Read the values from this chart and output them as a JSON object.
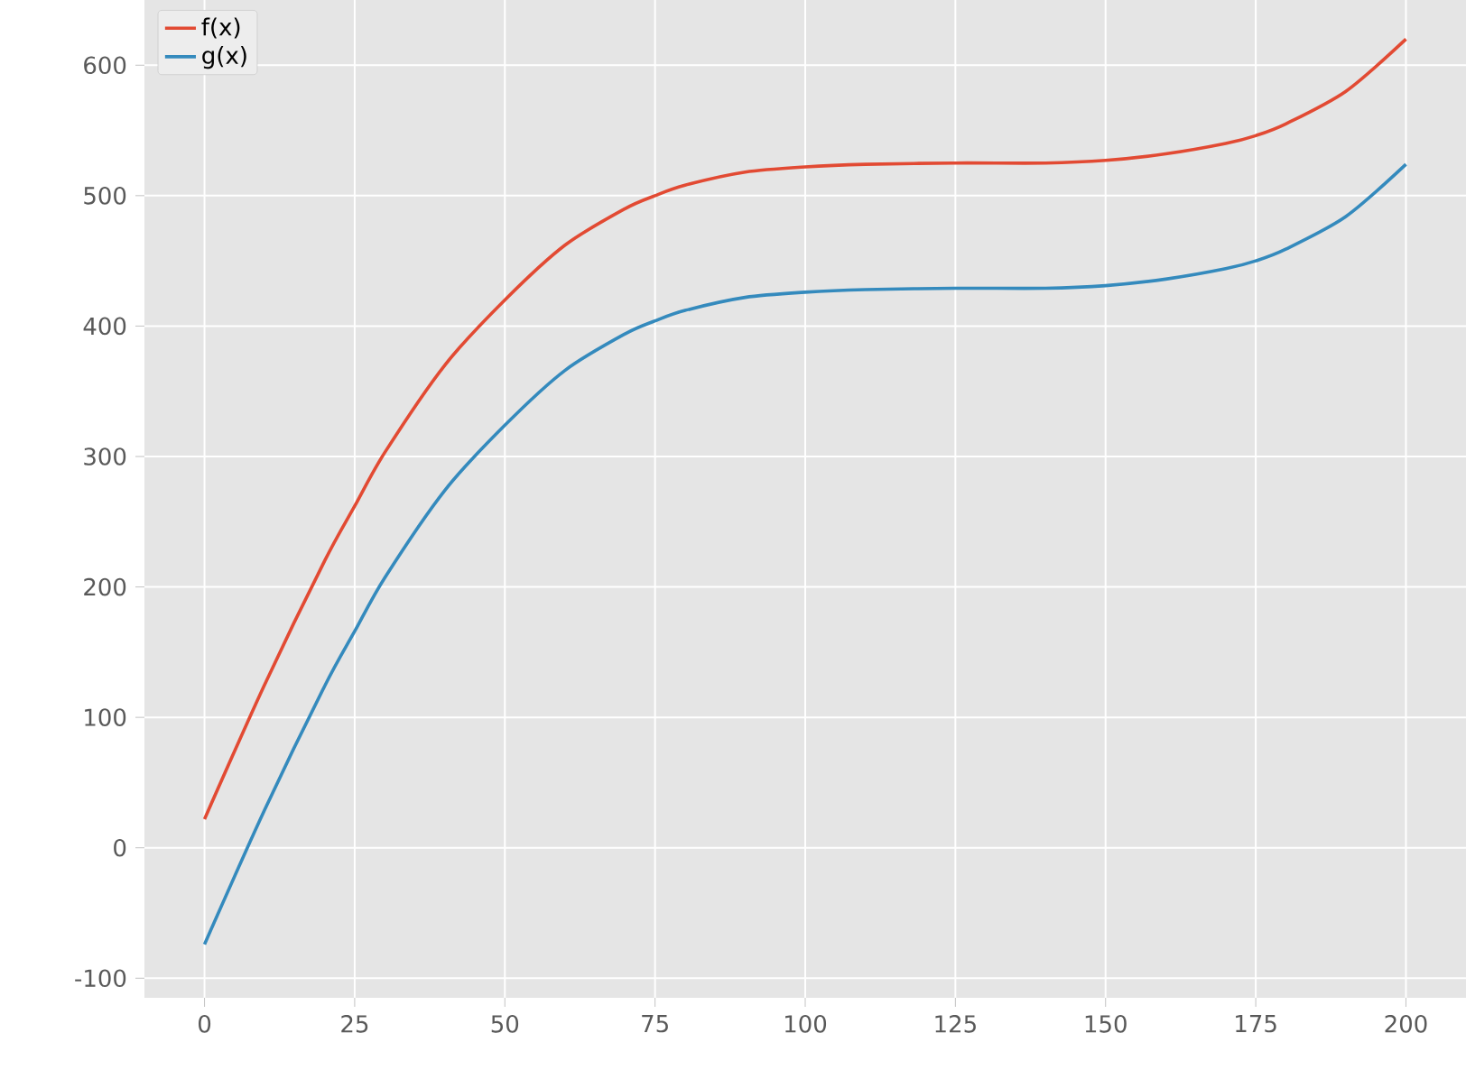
{
  "chart_data": {
    "type": "line",
    "x": [
      0,
      10,
      20,
      25,
      30,
      40,
      50,
      60,
      70,
      75,
      80,
      90,
      100,
      110,
      125,
      140,
      150,
      160,
      170,
      175,
      180,
      190,
      200
    ],
    "series": [
      {
        "name": "f(x)",
        "color": "#e24a33",
        "values": [
          22,
          125,
          220,
          262,
          303,
          370,
          420,
          462,
          490,
          500,
          508,
          518,
          522,
          524,
          525,
          525,
          527,
          532,
          540,
          546,
          555,
          580,
          620
        ]
      },
      {
        "name": "g(x)",
        "color": "#348abd",
        "values": [
          -74,
          29,
          124,
          166,
          207,
          274,
          324,
          366,
          394,
          404,
          412,
          422,
          426,
          428,
          429,
          429,
          431,
          436,
          444,
          450,
          459,
          484,
          524
        ]
      }
    ],
    "xlim": [
      -10,
      210
    ],
    "ylim": [
      -115,
      650
    ],
    "xticks": [
      0,
      25,
      50,
      75,
      100,
      125,
      150,
      175,
      200
    ],
    "yticks": [
      -100,
      0,
      100,
      200,
      300,
      400,
      500,
      600
    ],
    "grid": true,
    "legend": "top left",
    "marker": "none",
    "line_style": "solid"
  }
}
